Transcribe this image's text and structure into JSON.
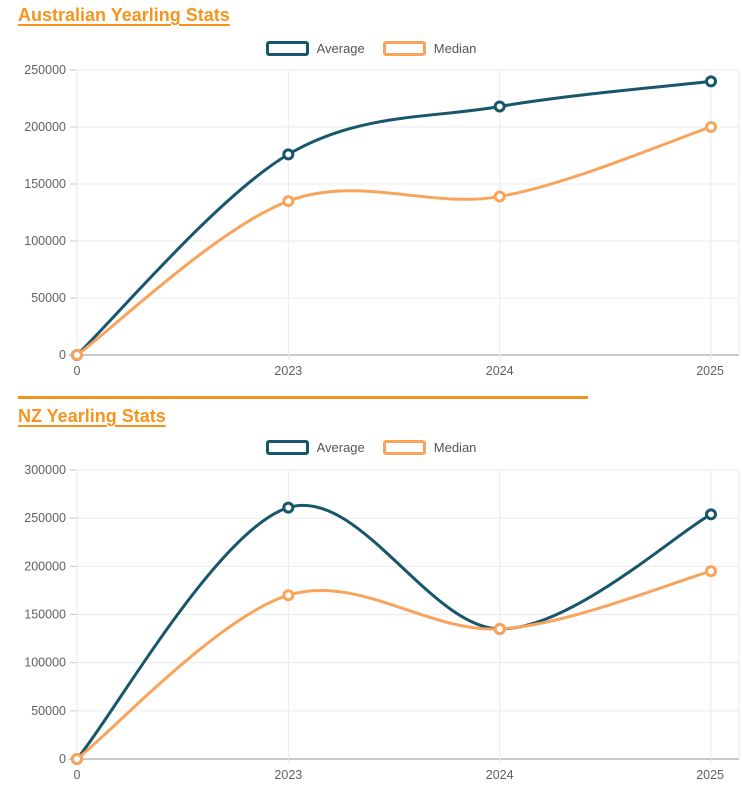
{
  "colors": {
    "title_orange": "#F7941E",
    "divider_orange": "#F0921E",
    "average_teal": "#17566B",
    "median_orange": "#F9A45B",
    "grid_light": "#EBEBEB",
    "axis_gray": "#C9C9C9",
    "tick_text": "#616161",
    "legend_text": "#555555"
  },
  "divider": {
    "color": "#F0921E"
  },
  "chart_data": [
    {
      "type": "line",
      "title": "Australian Yearling Stats",
      "categories": [
        "0",
        "2023",
        "2024",
        "2025"
      ],
      "series": [
        {
          "name": "Average",
          "color": "#17566B",
          "values": [
            0,
            176000,
            218000,
            240000
          ]
        },
        {
          "name": "Median",
          "color": "#F9A45B",
          "values": [
            0,
            135000,
            139000,
            200000
          ]
        }
      ],
      "ylim": [
        0,
        250000
      ],
      "ytick_step": 50000,
      "yticks": [
        "0",
        "50000",
        "100000",
        "150000",
        "200000",
        "250000"
      ],
      "xlabel": "",
      "ylabel": "",
      "grid": true,
      "curve": "spline",
      "markers": "hollow-circle",
      "legend_position": "top-center"
    },
    {
      "type": "line",
      "title": "NZ Yearling Stats",
      "categories": [
        "0",
        "2023",
        "2024",
        "2025"
      ],
      "series": [
        {
          "name": "Average",
          "color": "#17566B",
          "values": [
            0,
            261000,
            135000,
            254000
          ]
        },
        {
          "name": "Median",
          "color": "#F9A45B",
          "values": [
            0,
            170000,
            135000,
            195000
          ]
        }
      ],
      "ylim": [
        0,
        300000
      ],
      "ytick_step": 50000,
      "yticks": [
        "0",
        "50000",
        "100000",
        "150000",
        "200000",
        "250000",
        "300000"
      ],
      "xlabel": "",
      "ylabel": "",
      "grid": true,
      "curve": "spline",
      "markers": "hollow-circle",
      "legend_position": "top-center"
    }
  ]
}
